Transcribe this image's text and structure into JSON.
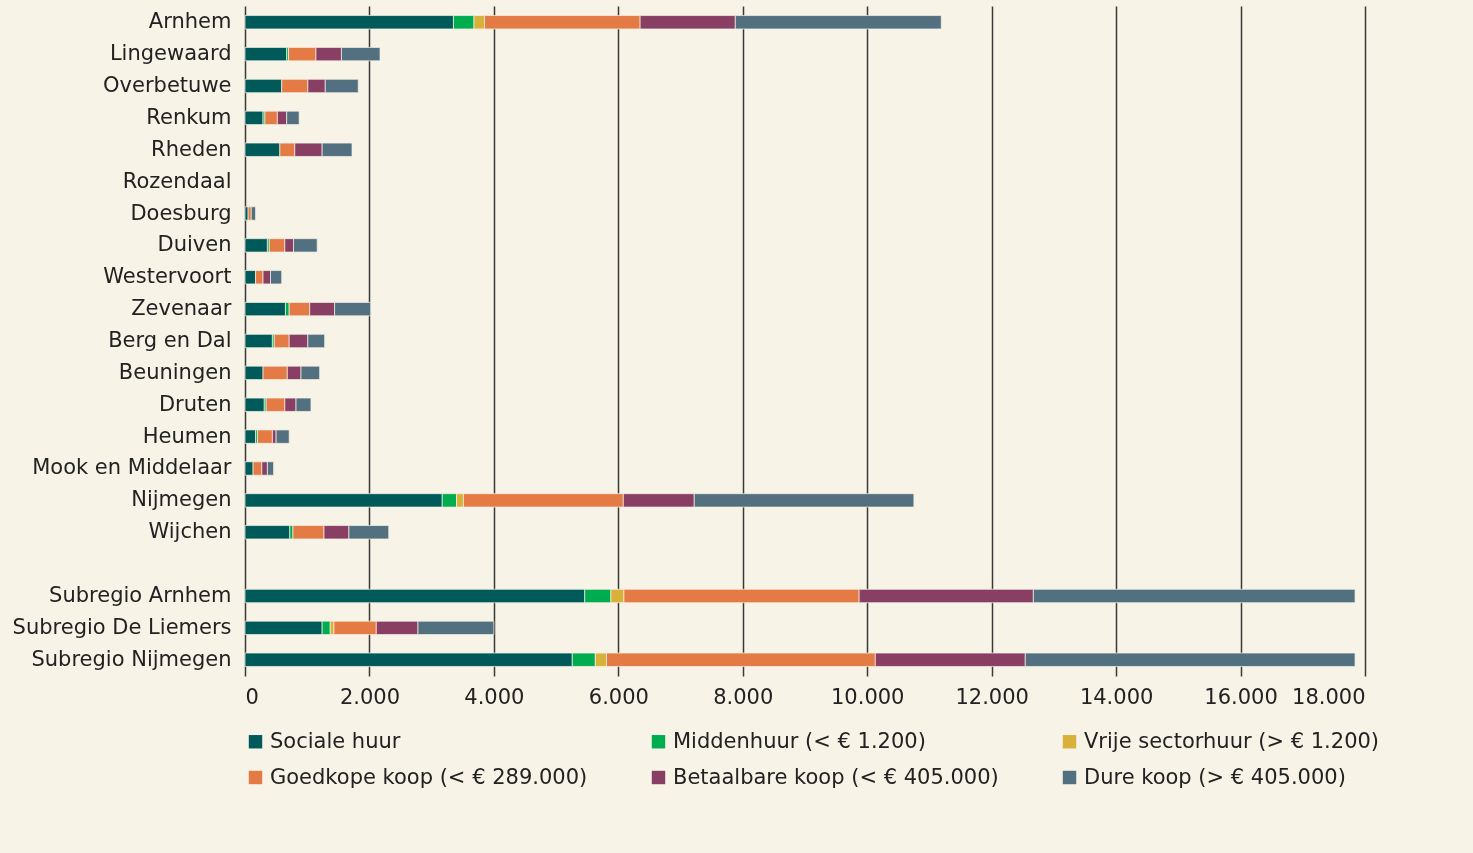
{
  "chart_data": {
    "type": "bar",
    "orientation": "horizontal",
    "stacked": true,
    "categories": [
      "Arnhem",
      "Lingewaard",
      "Overbetuwe",
      "Renkum",
      "Rheden",
      "Rozendaal",
      "Doesburg",
      "Duiven",
      "Westervoort",
      "Zevenaar",
      "Berg en Dal",
      "Beuningen",
      "Druten",
      "Heumen",
      "Mook en Middelaar",
      "Nijmegen",
      "Wijchen",
      null,
      "Subregio Arnhem",
      "Subregio De Liemers",
      "Subregio Nijmegen"
    ],
    "series": [
      {
        "name": "Sociale huur",
        "color": "#005a5a",
        "values": [
          3350,
          670,
          590,
          290,
          560,
          0,
          50,
          360,
          170,
          650,
          440,
          290,
          310,
          170,
          130,
          3170,
          720,
          null,
          5460,
          1240,
          5260
        ]
      },
      {
        "name": "Middenhuur (< € 1.200)",
        "color": "#00ac50",
        "values": [
          330,
          30,
          0,
          30,
          0,
          0,
          0,
          30,
          0,
          60,
          30,
          0,
          30,
          30,
          0,
          230,
          50,
          null,
          420,
          130,
          370
        ]
      },
      {
        "name": "Vrije sectorhuur (> € 1.200)",
        "color": "#d8b13a",
        "values": [
          170,
          0,
          0,
          0,
          0,
          0,
          0,
          0,
          0,
          0,
          0,
          0,
          0,
          0,
          0,
          110,
          0,
          null,
          210,
          60,
          180
        ]
      },
      {
        "name": "Goedkope koop (< € 289.000)",
        "color": "#e47a44",
        "values": [
          2500,
          440,
          420,
          200,
          240,
          0,
          50,
          250,
          120,
          330,
          240,
          390,
          300,
          240,
          140,
          2570,
          500,
          null,
          3780,
          680,
          4320
        ]
      },
      {
        "name": "Betaalbare koop (< € 405.000)",
        "color": "#883f63",
        "values": [
          1530,
          410,
          280,
          150,
          440,
          0,
          null,
          140,
          120,
          400,
          300,
          220,
          180,
          60,
          90,
          1140,
          400,
          null,
          2800,
          670,
          2410
        ]
      },
      {
        "name": "Dure koop (> € 405.000)",
        "color": "#527080",
        "values": [
          3310,
          620,
          530,
          200,
          480,
          0,
          70,
          380,
          180,
          580,
          270,
          300,
          240,
          210,
          100,
          3530,
          640,
          null,
          5170,
          1220,
          5300
        ]
      }
    ],
    "xlim": [
      0,
      18000
    ],
    "xticks": [
      {
        "value": 0,
        "label": "0"
      },
      {
        "value": 2000,
        "label": "2.000"
      },
      {
        "value": 4000,
        "label": "4.000"
      },
      {
        "value": 6000,
        "label": "6.000"
      },
      {
        "value": 8000,
        "label": "8.000"
      },
      {
        "value": 10000,
        "label": "10.000"
      },
      {
        "value": 12000,
        "label": "12.000"
      },
      {
        "value": 14000,
        "label": "14.000"
      },
      {
        "value": 16000,
        "label": "16.000"
      },
      {
        "value": 18000,
        "label": "18.000"
      }
    ],
    "grid": "x",
    "legend": "bottom"
  }
}
